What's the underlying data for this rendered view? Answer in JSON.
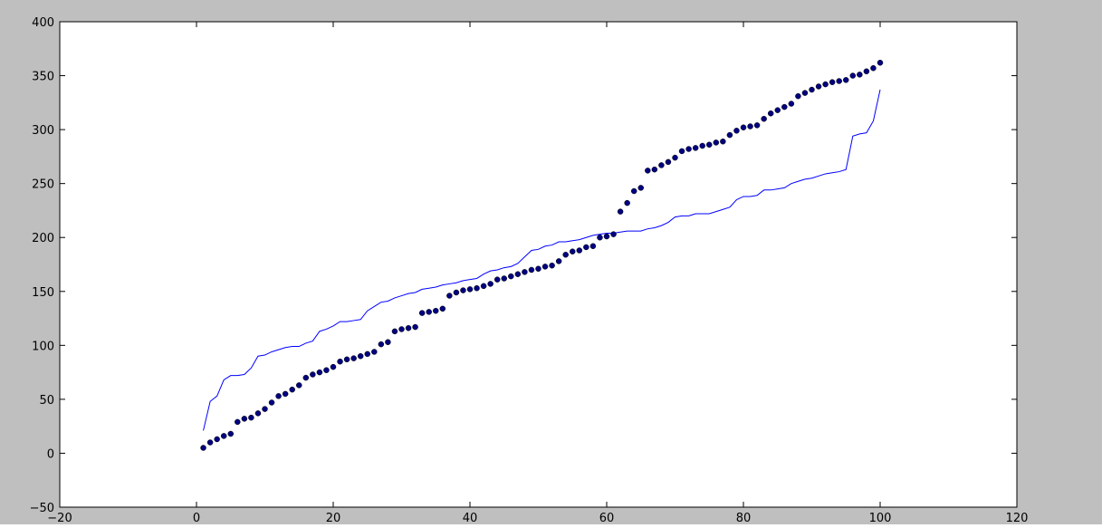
{
  "colors": {
    "background": "#bfbfbf",
    "plot_area": "#ffffff",
    "line": "#0000ff",
    "markers": "#00007f",
    "axes": "#000000"
  },
  "chart_data": {
    "type": "scatter",
    "title": "",
    "xlabel": "",
    "ylabel": "",
    "xlim": [
      -20,
      120
    ],
    "ylim": [
      -50,
      400
    ],
    "grid": false,
    "xticks": [
      -20,
      0,
      20,
      40,
      60,
      80,
      100,
      120
    ],
    "yticks": [
      -50,
      0,
      50,
      100,
      150,
      200,
      250,
      300,
      350,
      400
    ],
    "xtick_labels": [
      "−20",
      "0",
      "20",
      "40",
      "60",
      "80",
      "100",
      "120"
    ],
    "ytick_labels": [
      "−50",
      "0",
      "50",
      "100",
      "150",
      "200",
      "250",
      "300",
      "350",
      "400"
    ],
    "series": [
      {
        "kind": "line",
        "color": "#0000ff",
        "x": [
          1,
          2,
          3,
          4,
          5,
          6,
          7,
          8,
          9,
          10,
          11,
          12,
          13,
          14,
          15,
          16,
          17,
          18,
          19,
          20,
          21,
          22,
          23,
          24,
          25,
          26,
          27,
          28,
          29,
          30,
          31,
          32,
          33,
          34,
          35,
          36,
          37,
          38,
          39,
          40,
          41,
          42,
          43,
          44,
          45,
          46,
          47,
          48,
          49,
          50,
          51,
          52,
          53,
          54,
          55,
          56,
          57,
          58,
          59,
          60,
          61,
          62,
          63,
          64,
          65,
          66,
          67,
          68,
          69,
          70,
          71,
          72,
          73,
          74,
          75,
          76,
          77,
          78,
          79,
          80,
          81,
          82,
          83,
          84,
          85,
          86,
          87,
          88,
          89,
          90,
          91,
          92,
          93,
          94,
          95,
          96,
          97,
          98,
          99,
          100
        ],
        "y": [
          21,
          48,
          53,
          68,
          72,
          72,
          73,
          79,
          90,
          91,
          94,
          96,
          98,
          99,
          99,
          102,
          104,
          113,
          115,
          118,
          122,
          122,
          123,
          124,
          132,
          136,
          140,
          141,
          144,
          146,
          148,
          149,
          152,
          153,
          154,
          156,
          157,
          158,
          160,
          161,
          162,
          166,
          169,
          170,
          172,
          173,
          176,
          182,
          188,
          189,
          192,
          193,
          196,
          196,
          197,
          198,
          200,
          202,
          203,
          204,
          204,
          205,
          206,
          206,
          206,
          208,
          209,
          211,
          214,
          219,
          220,
          220,
          222,
          222,
          222,
          224,
          226,
          228,
          235,
          238,
          238,
          239,
          244,
          244,
          245,
          246,
          250,
          252,
          254,
          255,
          257,
          259,
          260,
          261,
          263,
          294,
          296,
          297,
          308,
          337
        ]
      },
      {
        "kind": "scatter",
        "color": "#00007f",
        "x": [
          1,
          2,
          3,
          4,
          5,
          6,
          7,
          8,
          9,
          10,
          11,
          12,
          13,
          14,
          15,
          16,
          17,
          18,
          19,
          20,
          21,
          22,
          23,
          24,
          25,
          26,
          27,
          28,
          29,
          30,
          31,
          32,
          33,
          34,
          35,
          36,
          37,
          38,
          39,
          40,
          41,
          42,
          43,
          44,
          45,
          46,
          47,
          48,
          49,
          50,
          51,
          52,
          53,
          54,
          55,
          56,
          57,
          58,
          59,
          60,
          61,
          62,
          63,
          64,
          65,
          66,
          67,
          68,
          69,
          70,
          71,
          72,
          73,
          74,
          75,
          76,
          77,
          78,
          79,
          80,
          81,
          82,
          83,
          84,
          85,
          86,
          87,
          88,
          89,
          90,
          91,
          92,
          93,
          94,
          95,
          96,
          97,
          98,
          99,
          100
        ],
        "y": [
          5,
          10,
          13,
          16,
          18,
          29,
          32,
          33,
          37,
          41,
          47,
          53,
          55,
          59,
          63,
          70,
          73,
          75,
          77,
          80,
          85,
          87,
          88,
          90,
          92,
          94,
          101,
          103,
          113,
          115,
          116,
          117,
          130,
          131,
          132,
          134,
          146,
          149,
          151,
          152,
          153,
          155,
          157,
          161,
          162,
          164,
          166,
          168,
          170,
          171,
          173,
          174,
          178,
          184,
          187,
          188,
          191,
          192,
          200,
          201,
          203,
          224,
          232,
          243,
          246,
          262,
          263,
          267,
          270,
          274,
          280,
          282,
          283,
          285,
          286,
          288,
          289,
          295,
          299,
          302,
          303,
          304,
          310,
          315,
          318,
          321,
          324,
          331,
          334,
          337,
          340,
          342,
          344,
          345,
          346,
          350,
          351,
          354,
          357,
          362
        ]
      }
    ]
  }
}
